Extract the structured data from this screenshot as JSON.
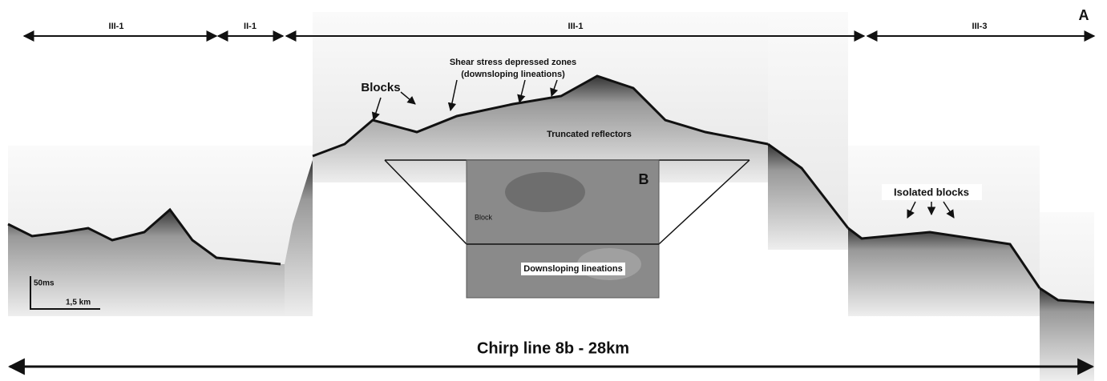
{
  "panel_labels": {
    "a": "A",
    "b": "B"
  },
  "segments": [
    "III-1",
    "II-1",
    "III-1",
    "III-3"
  ],
  "annotations": {
    "shear_title": "Shear stress depressed zones",
    "shear_sub": "(downsloping lineations)",
    "blocks": "Blocks",
    "truncated": "Truncated reflectors",
    "isolated": "Isolated blocks",
    "inset_block": "Block",
    "inset_lineations": "Downsloping lineations"
  },
  "scale_bar": {
    "vertical": "50ms",
    "horizontal": "1,5 km"
  },
  "caption": "Chirp line 8b - 28km"
}
